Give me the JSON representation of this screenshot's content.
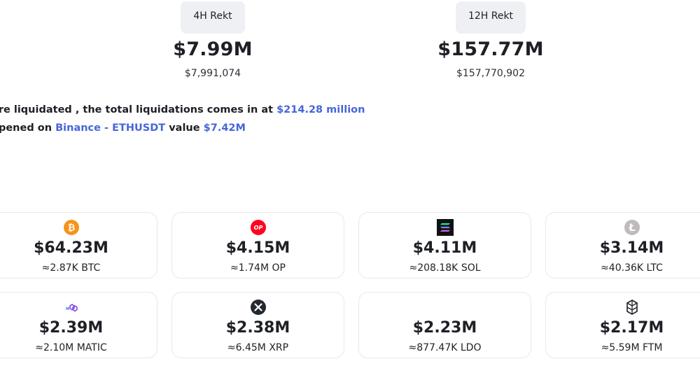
{
  "stats": [
    {
      "label": "4H Rekt",
      "value": "$7.99M",
      "exact": "$7,991,074"
    },
    {
      "label": "12H Rekt",
      "value": "$157.77M",
      "exact": "$157,770,902"
    }
  ],
  "summary": {
    "line1_text": "ere liquidated , the total liquidations comes in at ",
    "line1_value": "$214.28 million",
    "line2_text": "opened on ",
    "line2_exchange": "Binance - ETHUSDT",
    "line2_mid": " value ",
    "line2_value": "$7.42M"
  },
  "coins": [
    {
      "amount": "$64.23M",
      "qty": "≈2.87K BTC",
      "icon": "bitcoin-icon",
      "color": "#f7931a"
    },
    {
      "amount": "$4.15M",
      "qty": "≈1.74M OP",
      "icon": "optimism-icon",
      "color": "#ff0420"
    },
    {
      "amount": "$4.11M",
      "qty": "≈208.18K SOL",
      "icon": "solana-icon",
      "color": "#111111"
    },
    {
      "amount": "$3.14M",
      "qty": "≈40.36K LTC",
      "icon": "litecoin-icon",
      "color": "#bfbbbb"
    },
    {
      "amount": "$2.39M",
      "qty": "≈2.10M MATIC",
      "icon": "polygon-icon",
      "color": "#8247e5"
    },
    {
      "amount": "$2.38M",
      "qty": "≈6.45M XRP",
      "icon": "xrp-icon",
      "color": "#23292f"
    },
    {
      "amount": "$2.23M",
      "qty": "≈877.47K LDO",
      "icon": "lido-icon",
      "color": "#00a3ff"
    },
    {
      "amount": "$2.17M",
      "qty": "≈5.59M FTM",
      "icon": "fantom-icon",
      "color": "#1e2026"
    }
  ]
}
